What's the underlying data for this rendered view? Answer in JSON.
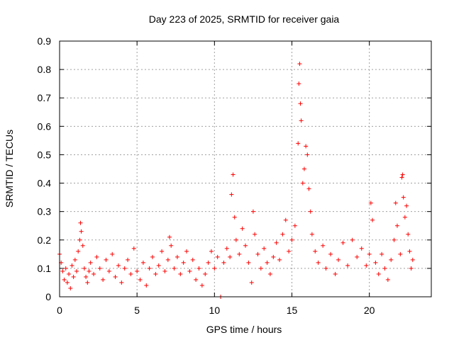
{
  "chart_data": {
    "type": "scatter",
    "title": "Day 223 of 2025, SRMTID for receiver gaia",
    "xlabel": "GPS time / hours",
    "ylabel": "SRMTID / TECUs",
    "xlim": [
      0,
      24
    ],
    "ylim": [
      0,
      0.9
    ],
    "xticks": [
      0,
      5,
      10,
      15,
      20
    ],
    "yticks": [
      0,
      0.1,
      0.2,
      0.3,
      0.4,
      0.5,
      0.6,
      0.7,
      0.8,
      0.9
    ],
    "xtick_labels": [
      "0",
      "5",
      "10",
      "15",
      "20"
    ],
    "ytick_labels": [
      "0",
      "0.1",
      "0.2",
      "0.3",
      "0.4",
      "0.5",
      "0.6",
      "0.7",
      "0.8",
      "0.9"
    ],
    "grid": true,
    "marker": "plus",
    "color": "#ff0000",
    "series": [
      {
        "name": "SRMTID",
        "points": [
          [
            0.0,
            0.15
          ],
          [
            0.1,
            0.12
          ],
          [
            0.2,
            0.09
          ],
          [
            0.3,
            0.06
          ],
          [
            0.4,
            0.1
          ],
          [
            0.5,
            0.05
          ],
          [
            0.6,
            0.08
          ],
          [
            0.7,
            0.03
          ],
          [
            0.8,
            0.11
          ],
          [
            0.9,
            0.07
          ],
          [
            1.0,
            0.13
          ],
          [
            1.1,
            0.09
          ],
          [
            1.2,
            0.16
          ],
          [
            1.3,
            0.2
          ],
          [
            1.35,
            0.26
          ],
          [
            1.4,
            0.23
          ],
          [
            1.5,
            0.18
          ],
          [
            1.6,
            0.1
          ],
          [
            1.7,
            0.07
          ],
          [
            1.8,
            0.05
          ],
          [
            1.9,
            0.09
          ],
          [
            2.0,
            0.12
          ],
          [
            2.2,
            0.08
          ],
          [
            2.4,
            0.14
          ],
          [
            2.6,
            0.1
          ],
          [
            2.8,
            0.06
          ],
          [
            3.0,
            0.13
          ],
          [
            3.2,
            0.09
          ],
          [
            3.4,
            0.15
          ],
          [
            3.6,
            0.07
          ],
          [
            3.8,
            0.11
          ],
          [
            4.0,
            0.05
          ],
          [
            4.2,
            0.1
          ],
          [
            4.4,
            0.13
          ],
          [
            4.6,
            0.08
          ],
          [
            4.8,
            0.17
          ],
          [
            5.0,
            0.09
          ],
          [
            5.2,
            0.06
          ],
          [
            5.4,
            0.12
          ],
          [
            5.6,
            0.04
          ],
          [
            5.8,
            0.1
          ],
          [
            6.0,
            0.14
          ],
          [
            6.2,
            0.08
          ],
          [
            6.4,
            0.11
          ],
          [
            6.6,
            0.16
          ],
          [
            6.8,
            0.09
          ],
          [
            7.0,
            0.13
          ],
          [
            7.1,
            0.21
          ],
          [
            7.2,
            0.18
          ],
          [
            7.4,
            0.1
          ],
          [
            7.6,
            0.14
          ],
          [
            7.8,
            0.08
          ],
          [
            8.0,
            0.12
          ],
          [
            8.2,
            0.16
          ],
          [
            8.4,
            0.09
          ],
          [
            8.6,
            0.13
          ],
          [
            8.8,
            0.06
          ],
          [
            9.0,
            0.1
          ],
          [
            9.2,
            0.04
          ],
          [
            9.4,
            0.08
          ],
          [
            9.6,
            0.12
          ],
          [
            9.8,
            0.16
          ],
          [
            10.0,
            0.1
          ],
          [
            10.2,
            0.14
          ],
          [
            10.4,
            0.0
          ],
          [
            10.6,
            0.12
          ],
          [
            10.8,
            0.17
          ],
          [
            11.0,
            0.14
          ],
          [
            11.1,
            0.36
          ],
          [
            11.2,
            0.43
          ],
          [
            11.3,
            0.28
          ],
          [
            11.4,
            0.2
          ],
          [
            11.6,
            0.15
          ],
          [
            11.8,
            0.24
          ],
          [
            12.0,
            0.18
          ],
          [
            12.2,
            0.12
          ],
          [
            12.4,
            0.05
          ],
          [
            12.5,
            0.3
          ],
          [
            12.6,
            0.22
          ],
          [
            12.8,
            0.15
          ],
          [
            13.0,
            0.1
          ],
          [
            13.2,
            0.17
          ],
          [
            13.4,
            0.12
          ],
          [
            13.6,
            0.08
          ],
          [
            13.8,
            0.14
          ],
          [
            14.0,
            0.19
          ],
          [
            14.2,
            0.13
          ],
          [
            14.4,
            0.22
          ],
          [
            14.6,
            0.27
          ],
          [
            14.8,
            0.16
          ],
          [
            15.0,
            0.2
          ],
          [
            15.2,
            0.25
          ],
          [
            15.4,
            0.54
          ],
          [
            15.45,
            0.75
          ],
          [
            15.5,
            0.82
          ],
          [
            15.55,
            0.68
          ],
          [
            15.6,
            0.62
          ],
          [
            15.7,
            0.4
          ],
          [
            15.8,
            0.45
          ],
          [
            15.9,
            0.53
          ],
          [
            16.0,
            0.5
          ],
          [
            16.1,
            0.38
          ],
          [
            16.2,
            0.3
          ],
          [
            16.3,
            0.22
          ],
          [
            16.5,
            0.16
          ],
          [
            16.7,
            0.12
          ],
          [
            17.0,
            0.18
          ],
          [
            17.2,
            0.1
          ],
          [
            17.5,
            0.15
          ],
          [
            17.8,
            0.08
          ],
          [
            18.0,
            0.13
          ],
          [
            18.3,
            0.19
          ],
          [
            18.6,
            0.11
          ],
          [
            18.9,
            0.2
          ],
          [
            19.2,
            0.14
          ],
          [
            19.5,
            0.17
          ],
          [
            19.8,
            0.11
          ],
          [
            20.0,
            0.15
          ],
          [
            20.1,
            0.33
          ],
          [
            20.2,
            0.27
          ],
          [
            20.4,
            0.12
          ],
          [
            20.6,
            0.08
          ],
          [
            20.8,
            0.15
          ],
          [
            21.0,
            0.1
          ],
          [
            21.2,
            0.06
          ],
          [
            21.4,
            0.13
          ],
          [
            21.6,
            0.2
          ],
          [
            21.7,
            0.33
          ],
          [
            21.8,
            0.25
          ],
          [
            22.0,
            0.15
          ],
          [
            22.1,
            0.42
          ],
          [
            22.15,
            0.43
          ],
          [
            22.2,
            0.35
          ],
          [
            22.3,
            0.28
          ],
          [
            22.4,
            0.32
          ],
          [
            22.5,
            0.22
          ],
          [
            22.6,
            0.16
          ],
          [
            22.7,
            0.1
          ],
          [
            22.8,
            0.13
          ]
        ]
      }
    ]
  }
}
